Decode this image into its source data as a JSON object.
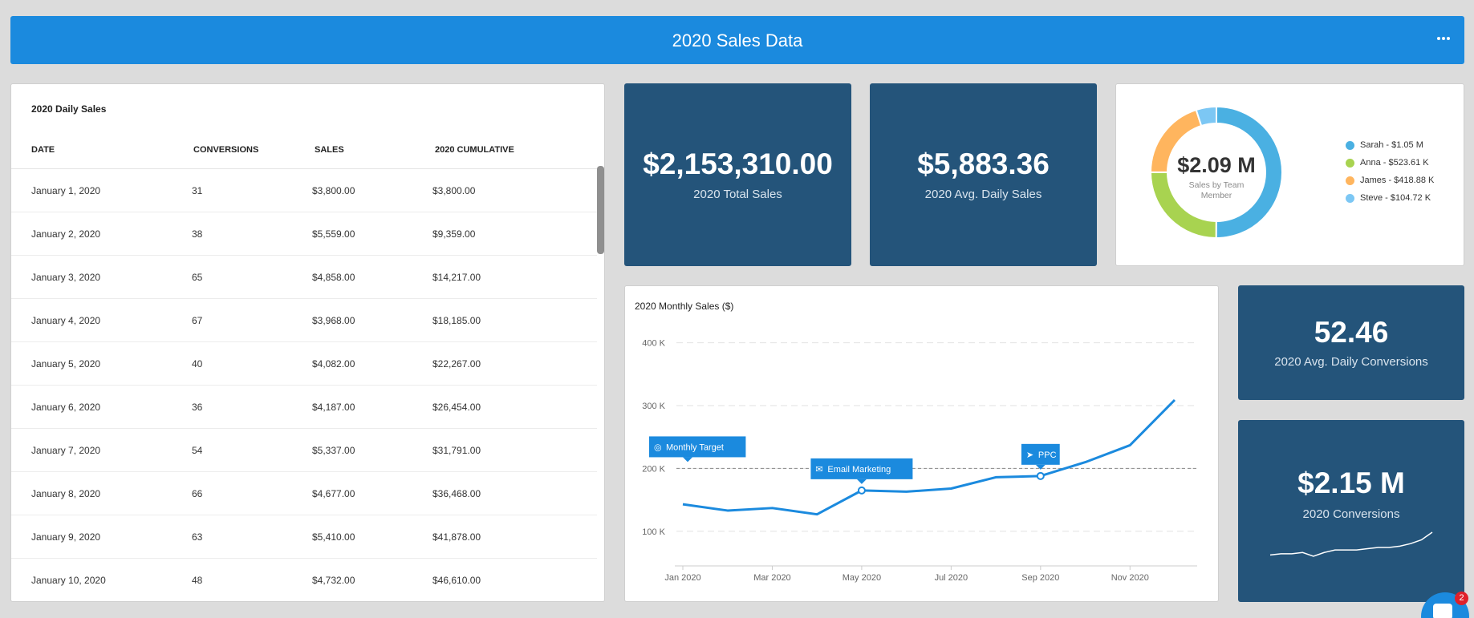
{
  "header": {
    "title": "2020 Sales Data",
    "menu_icon": "ellipsis-icon"
  },
  "daily_table": {
    "title": "2020 Daily Sales",
    "columns": [
      "DATE",
      "CONVERSIONS",
      "SALES",
      "2020 CUMULATIVE"
    ],
    "rows": [
      [
        "January 1, 2020",
        "31",
        "$3,800.00",
        "$3,800.00"
      ],
      [
        "January 2, 2020",
        "38",
        "$5,559.00",
        "$9,359.00"
      ],
      [
        "January 3, 2020",
        "65",
        "$4,858.00",
        "$14,217.00"
      ],
      [
        "January 4, 2020",
        "67",
        "$3,968.00",
        "$18,185.00"
      ],
      [
        "January 5, 2020",
        "40",
        "$4,082.00",
        "$22,267.00"
      ],
      [
        "January 6, 2020",
        "36",
        "$4,187.00",
        "$26,454.00"
      ],
      [
        "January 7, 2020",
        "54",
        "$5,337.00",
        "$31,791.00"
      ],
      [
        "January 8, 2020",
        "66",
        "$4,677.00",
        "$36,468.00"
      ],
      [
        "January 9, 2020",
        "63",
        "$5,410.00",
        "$41,878.00"
      ],
      [
        "January 10, 2020",
        "48",
        "$4,732.00",
        "$46,610.00"
      ]
    ]
  },
  "kpis": {
    "total_sales": {
      "value": "$2,153,310.00",
      "label": "2020 Total Sales"
    },
    "avg_daily_sales": {
      "value": "$5,883.36",
      "label": "2020 Avg. Daily Sales"
    },
    "avg_daily_conversions": {
      "value": "52.46",
      "label": "2020 Avg. Daily Conversions"
    },
    "conversions": {
      "value": "$2.15 M",
      "label": "2020 Conversions"
    }
  },
  "sparkline_values": [
    7,
    8,
    8,
    9,
    6,
    9,
    11,
    11,
    11,
    12,
    13,
    13,
    14,
    16,
    19,
    25
  ],
  "donut": {
    "center_value": "$2.09 M",
    "center_caption": "Sales by Team Member",
    "segments": [
      {
        "label": "Sarah - $1.05 M",
        "value": 1.05,
        "color": "#4ab0e2"
      },
      {
        "label": "Anna - $523.61 K",
        "value": 0.52361,
        "color": "#a8d350"
      },
      {
        "label": "James - $418.88 K",
        "value": 0.41888,
        "color": "#ffb55e"
      },
      {
        "label": "Steve - $104.72 K",
        "value": 0.10472,
        "color": "#7cc7f4"
      }
    ]
  },
  "chart_data": {
    "type": "line",
    "title": "2020 Monthly Sales ($)",
    "x": [
      "Jan 2020",
      "Feb 2020",
      "Mar 2020",
      "Apr 2020",
      "May 2020",
      "Jun 2020",
      "Jul 2020",
      "Aug 2020",
      "Sep 2020",
      "Oct 2020",
      "Nov 2020",
      "Dec 2020"
    ],
    "x_tick_labels": [
      "Jan 2020",
      "Mar 2020",
      "May 2020",
      "Jul 2020",
      "Sep 2020",
      "Nov 2020"
    ],
    "series": [
      {
        "values": [
          143000,
          133000,
          137000,
          127000,
          165000,
          163000,
          168000,
          186000,
          188000,
          210000,
          237000,
          309000
        ],
        "color": "#1b8ade"
      }
    ],
    "ylim": [
      50000,
      420000
    ],
    "y_ticks": [
      100000,
      200000,
      300000,
      400000
    ],
    "y_tick_labels": [
      "100 K",
      "200 K",
      "300 K",
      "400 K"
    ],
    "target_line": 200000,
    "grid": true,
    "annotations": [
      {
        "text": "Monthly Target",
        "icon": "target-icon",
        "x_index": 0,
        "y": 200000
      },
      {
        "text": "Email Marketing",
        "icon": "email-icon",
        "x_index": 4,
        "y": 165000
      },
      {
        "text": "PPC",
        "icon": "rocket-icon",
        "x_index": 8,
        "y": 188000
      }
    ]
  },
  "chat": {
    "badge": "2"
  }
}
